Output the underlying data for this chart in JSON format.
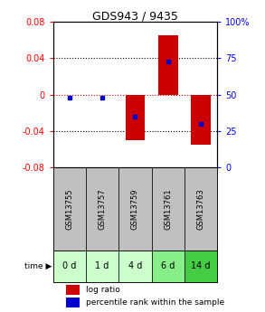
{
  "title": "GDS943 / 9435",
  "samples": [
    "GSM13755",
    "GSM13757",
    "GSM13759",
    "GSM13761",
    "GSM13763"
  ],
  "time_labels": [
    "0 d",
    "1 d",
    "4 d",
    "6 d",
    "14 d"
  ],
  "log_ratios": [
    0.0,
    0.0,
    -0.05,
    0.065,
    -0.055
  ],
  "percentile_ranks": [
    48,
    48,
    35,
    73,
    30
  ],
  "ylim_left": [
    -0.08,
    0.08
  ],
  "ylim_right": [
    0,
    100
  ],
  "left_ticks": [
    -0.08,
    -0.04,
    0,
    0.04,
    0.08
  ],
  "right_ticks": [
    0,
    25,
    50,
    75,
    100
  ],
  "bar_color": "#cc0000",
  "dot_color": "#0000cc",
  "bar_width": 0.6,
  "gsm_bg": "#c0c0c0",
  "time_bg_colors": [
    "#ccffcc",
    "#ccffcc",
    "#ccffcc",
    "#88ee88",
    "#44cc44"
  ],
  "legend_bar_color": "#cc0000",
  "legend_dot_color": "#0000cc",
  "zero_line_color": "#cc0000",
  "title_fontsize": 9,
  "tick_fontsize": 7,
  "gsm_fontsize": 6,
  "time_fontsize": 7
}
